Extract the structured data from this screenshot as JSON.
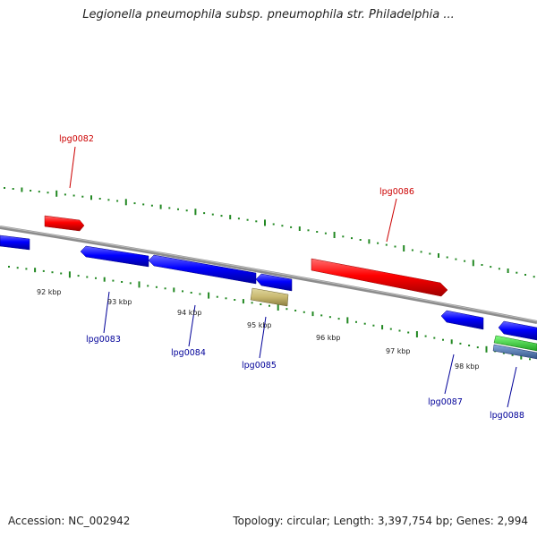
{
  "title": "Legionella pneumophila subsp. pneumophila str. Philadelphia ...",
  "footer": {
    "accession": "Accession: NC_002942",
    "summary": "Topology: circular; Length: 3,397,754 bp; Genes: 2,994"
  },
  "colors": {
    "forward_gene": "#ff0000",
    "reverse_gene": "#0000ff",
    "other_feature": "#c8b870",
    "rna_green": "#33cc33",
    "rna_steelblue": "#5577aa",
    "backbone": "#888888",
    "tick": "#228822",
    "label_forward": "#cc0000",
    "label_reverse": "#000099"
  },
  "kbp_labels": [
    "92 kbp",
    "93 kbp",
    "94 kbp",
    "95 kbp",
    "96 kbp",
    "97 kbp",
    "98 kbp"
  ],
  "gene_labels": {
    "g82": "lpg0082",
    "g83": "lpg0083",
    "g84": "lpg0084",
    "g85": "lpg0085",
    "g86": "lpg0086",
    "g87": "lpg0087",
    "g88": "lpg0088"
  }
}
